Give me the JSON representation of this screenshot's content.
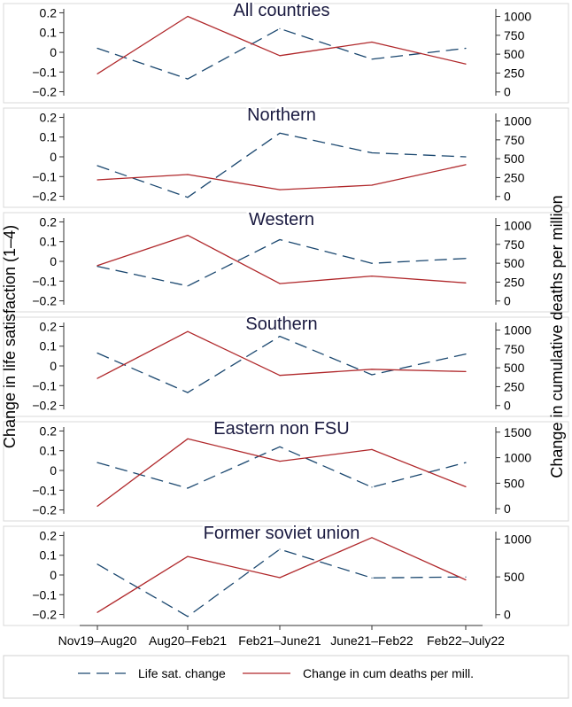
{
  "colors": {
    "life_sat": "#1a476f",
    "deaths": "#b0282b",
    "frame": "#333333",
    "title": "#1a1a40",
    "background": "#ffffff"
  },
  "chart_data": {
    "type": "line",
    "left_axis_title": "Change in life satisfaction (1–4)",
    "right_axis_title": "Change in cumulative deaths per million",
    "categories": [
      "Nov19–Aug20",
      "Aug20–Feb21",
      "Feb21–June21",
      "June21–Feb22",
      "Feb22–July22"
    ],
    "legend": [
      {
        "label": "Life sat. change",
        "style": "dashed"
      },
      {
        "label": "Change in cum deaths per mill.",
        "style": "solid"
      }
    ],
    "left_ylim": [
      -0.22,
      0.22
    ],
    "left_ticks": [
      "0.2",
      "0.1",
      "0",
      "−0.1",
      "−0.2"
    ],
    "left_tick_values": [
      0.2,
      0.1,
      0,
      -0.1,
      -0.2
    ],
    "panels": [
      {
        "title": "All countries",
        "right_ylim": [
          -50,
          1100
        ],
        "right_ticks": [
          "1000",
          "750",
          "500",
          "250",
          "0"
        ],
        "right_tick_values": [
          1000,
          750,
          500,
          250,
          0
        ],
        "series": [
          {
            "name": "Life sat. change",
            "axis": "left",
            "values": [
              0.02,
              -0.135,
              0.12,
              -0.035,
              0.02
            ]
          },
          {
            "name": "Change in cum deaths per mill.",
            "axis": "right",
            "values": [
              240,
              1000,
              480,
              660,
              370
            ]
          }
        ]
      },
      {
        "title": "Northern",
        "right_ylim": [
          -50,
          1100
        ],
        "right_ticks": [
          "1000",
          "750",
          "500",
          "250",
          "0"
        ],
        "right_tick_values": [
          1000,
          750,
          500,
          250,
          0
        ],
        "series": [
          {
            "name": "Life sat. change",
            "axis": "left",
            "values": [
              -0.045,
              -0.205,
              0.12,
              0.02,
              0.0
            ]
          },
          {
            "name": "Change in cum deaths per mill.",
            "axis": "right",
            "values": [
              220,
              290,
              90,
              150,
              420
            ]
          }
        ]
      },
      {
        "title": "Western",
        "right_ylim": [
          -50,
          1100
        ],
        "right_ticks": [
          "1000",
          "750",
          "500",
          "250",
          "0"
        ],
        "right_tick_values": [
          1000,
          750,
          500,
          250,
          0
        ],
        "series": [
          {
            "name": "Life sat. change",
            "axis": "left",
            "values": [
              -0.025,
              -0.125,
              0.11,
              -0.01,
              0.015
            ]
          },
          {
            "name": "Change in cum deaths per mill.",
            "axis": "right",
            "values": [
              470,
              870,
              230,
              330,
              240
            ]
          }
        ]
      },
      {
        "title": "Southern",
        "right_ylim": [
          -50,
          1100
        ],
        "right_ticks": [
          "1000",
          "750",
          "500",
          "250",
          "0"
        ],
        "right_tick_values": [
          1000,
          750,
          500,
          250,
          0
        ],
        "series": [
          {
            "name": "Life sat. change",
            "axis": "left",
            "values": [
              0.065,
              -0.135,
              0.15,
              -0.045,
              0.06
            ]
          },
          {
            "name": "Change in cum deaths per mill.",
            "axis": "right",
            "values": [
              360,
              980,
              400,
              480,
              450
            ]
          }
        ]
      },
      {
        "title": "Eastern non FSU",
        "right_ylim": [
          -100,
          1600
        ],
        "right_ticks": [
          "1500",
          "1000",
          "500",
          "0"
        ],
        "right_tick_values": [
          1500,
          1000,
          500,
          0
        ],
        "series": [
          {
            "name": "Life sat. change",
            "axis": "left",
            "values": [
              0.04,
              -0.09,
              0.12,
              -0.085,
              0.04
            ]
          },
          {
            "name": "Change in cum deaths per mill.",
            "axis": "right",
            "values": [
              50,
              1370,
              930,
              1160,
              430
            ]
          }
        ]
      },
      {
        "title": "Former soviet union",
        "right_ylim": [
          -50,
          1100
        ],
        "right_ticks": [
          "1000",
          "500",
          "0"
        ],
        "right_tick_values": [
          1000,
          500,
          0
        ],
        "series": [
          {
            "name": "Life sat. change",
            "axis": "left",
            "values": [
              0.055,
              -0.21,
              0.13,
              -0.015,
              -0.01
            ]
          },
          {
            "name": "Change in cum deaths per mill.",
            "axis": "right",
            "values": [
              30,
              770,
              490,
              1020,
              460
            ]
          }
        ]
      }
    ]
  }
}
